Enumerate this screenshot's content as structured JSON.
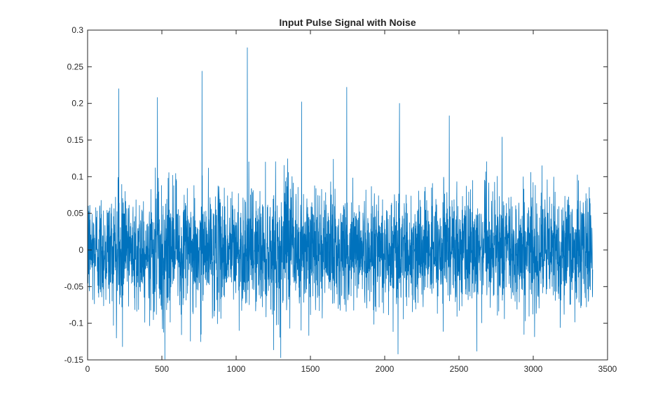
{
  "chart_data": {
    "type": "line",
    "title": "Input Pulse Signal with Noise",
    "xlabel": "",
    "ylabel": "",
    "xlim": [
      0,
      3500
    ],
    "ylim": [
      -0.15,
      0.3
    ],
    "x_ticks": [
      0,
      500,
      1000,
      1500,
      2000,
      2500,
      3000,
      3500
    ],
    "y_ticks": [
      -0.15,
      -0.1,
      -0.05,
      0,
      0.05,
      0.1,
      0.15,
      0.2,
      0.25,
      0.3
    ],
    "x_tick_labels": [
      "0",
      "500",
      "1000",
      "1500",
      "2000",
      "2500",
      "3000",
      "3500"
    ],
    "y_tick_labels": [
      "-0.15",
      "-0.1",
      "-0.05",
      "0",
      "0.05",
      "0.1",
      "0.15",
      "0.2",
      "0.25",
      "0.3"
    ],
    "grid": false,
    "line_color": "#0072BD",
    "series": [
      {
        "n_samples": 3400,
        "x_range": [
          0,
          3400
        ],
        "mean": 0.0,
        "noise_std": 0.04,
        "peaks": [
          {
            "x": 5,
            "y": 0.06
          },
          {
            "x": 210,
            "y": 0.22
          },
          {
            "x": 470,
            "y": 0.208
          },
          {
            "x": 770,
            "y": 0.244
          },
          {
            "x": 1075,
            "y": 0.276
          },
          {
            "x": 1440,
            "y": 0.202
          },
          {
            "x": 1745,
            "y": 0.222
          },
          {
            "x": 2100,
            "y": 0.2
          },
          {
            "x": 2435,
            "y": 0.183
          },
          {
            "x": 2790,
            "y": 0.154
          },
          {
            "x": 3395,
            "y": 0.03
          }
        ],
        "troughs": [
          {
            "x": 235,
            "y": -0.132
          },
          {
            "x": 520,
            "y": -0.149
          },
          {
            "x": 1300,
            "y": -0.147
          },
          {
            "x": 2090,
            "y": -0.142
          },
          {
            "x": 2620,
            "y": -0.138
          }
        ]
      }
    ]
  }
}
